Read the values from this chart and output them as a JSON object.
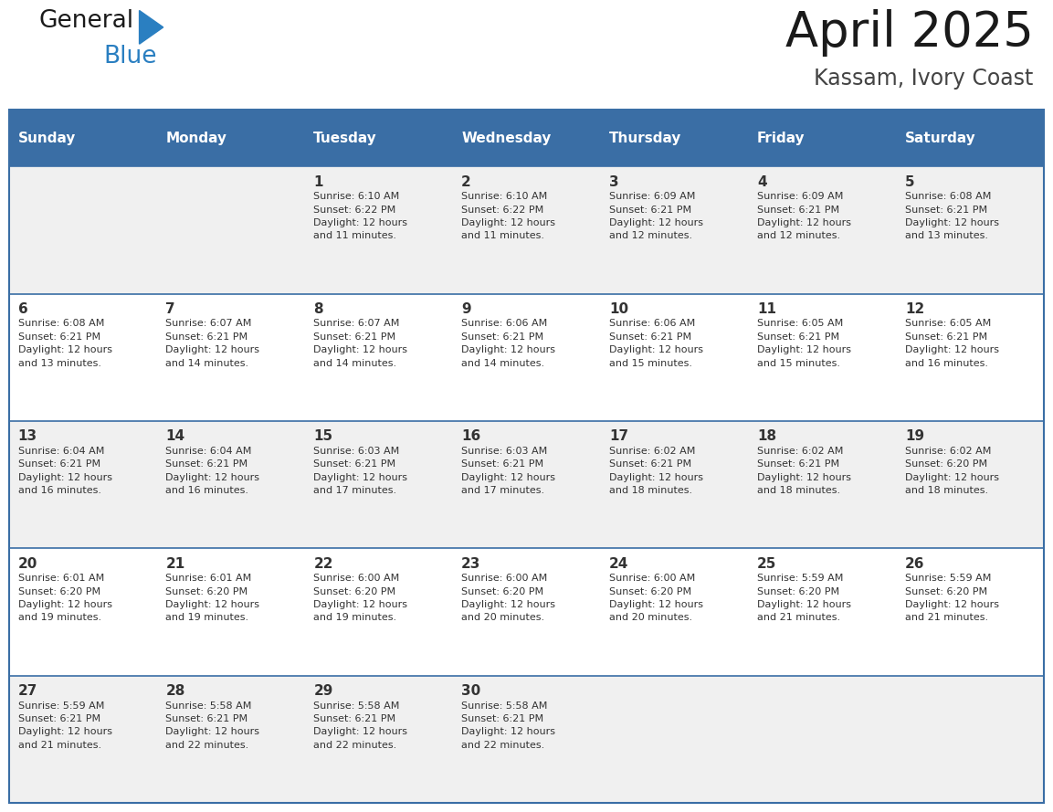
{
  "title": "April 2025",
  "subtitle": "Kassam, Ivory Coast",
  "header_bg": "#3a6ea5",
  "header_text_color": "#ffffff",
  "days_of_week": [
    "Sunday",
    "Monday",
    "Tuesday",
    "Wednesday",
    "Thursday",
    "Friday",
    "Saturday"
  ],
  "row_bg_even": "#f0f0f0",
  "row_bg_odd": "#ffffff",
  "cell_border_color": "#3a6ea5",
  "text_color": "#333333",
  "calendar": [
    [
      {
        "day": "",
        "info": ""
      },
      {
        "day": "",
        "info": ""
      },
      {
        "day": "1",
        "info": "Sunrise: 6:10 AM\nSunset: 6:22 PM\nDaylight: 12 hours\nand 11 minutes."
      },
      {
        "day": "2",
        "info": "Sunrise: 6:10 AM\nSunset: 6:22 PM\nDaylight: 12 hours\nand 11 minutes."
      },
      {
        "day": "3",
        "info": "Sunrise: 6:09 AM\nSunset: 6:21 PM\nDaylight: 12 hours\nand 12 minutes."
      },
      {
        "day": "4",
        "info": "Sunrise: 6:09 AM\nSunset: 6:21 PM\nDaylight: 12 hours\nand 12 minutes."
      },
      {
        "day": "5",
        "info": "Sunrise: 6:08 AM\nSunset: 6:21 PM\nDaylight: 12 hours\nand 13 minutes."
      }
    ],
    [
      {
        "day": "6",
        "info": "Sunrise: 6:08 AM\nSunset: 6:21 PM\nDaylight: 12 hours\nand 13 minutes."
      },
      {
        "day": "7",
        "info": "Sunrise: 6:07 AM\nSunset: 6:21 PM\nDaylight: 12 hours\nand 14 minutes."
      },
      {
        "day": "8",
        "info": "Sunrise: 6:07 AM\nSunset: 6:21 PM\nDaylight: 12 hours\nand 14 minutes."
      },
      {
        "day": "9",
        "info": "Sunrise: 6:06 AM\nSunset: 6:21 PM\nDaylight: 12 hours\nand 14 minutes."
      },
      {
        "day": "10",
        "info": "Sunrise: 6:06 AM\nSunset: 6:21 PM\nDaylight: 12 hours\nand 15 minutes."
      },
      {
        "day": "11",
        "info": "Sunrise: 6:05 AM\nSunset: 6:21 PM\nDaylight: 12 hours\nand 15 minutes."
      },
      {
        "day": "12",
        "info": "Sunrise: 6:05 AM\nSunset: 6:21 PM\nDaylight: 12 hours\nand 16 minutes."
      }
    ],
    [
      {
        "day": "13",
        "info": "Sunrise: 6:04 AM\nSunset: 6:21 PM\nDaylight: 12 hours\nand 16 minutes."
      },
      {
        "day": "14",
        "info": "Sunrise: 6:04 AM\nSunset: 6:21 PM\nDaylight: 12 hours\nand 16 minutes."
      },
      {
        "day": "15",
        "info": "Sunrise: 6:03 AM\nSunset: 6:21 PM\nDaylight: 12 hours\nand 17 minutes."
      },
      {
        "day": "16",
        "info": "Sunrise: 6:03 AM\nSunset: 6:21 PM\nDaylight: 12 hours\nand 17 minutes."
      },
      {
        "day": "17",
        "info": "Sunrise: 6:02 AM\nSunset: 6:21 PM\nDaylight: 12 hours\nand 18 minutes."
      },
      {
        "day": "18",
        "info": "Sunrise: 6:02 AM\nSunset: 6:21 PM\nDaylight: 12 hours\nand 18 minutes."
      },
      {
        "day": "19",
        "info": "Sunrise: 6:02 AM\nSunset: 6:20 PM\nDaylight: 12 hours\nand 18 minutes."
      }
    ],
    [
      {
        "day": "20",
        "info": "Sunrise: 6:01 AM\nSunset: 6:20 PM\nDaylight: 12 hours\nand 19 minutes."
      },
      {
        "day": "21",
        "info": "Sunrise: 6:01 AM\nSunset: 6:20 PM\nDaylight: 12 hours\nand 19 minutes."
      },
      {
        "day": "22",
        "info": "Sunrise: 6:00 AM\nSunset: 6:20 PM\nDaylight: 12 hours\nand 19 minutes."
      },
      {
        "day": "23",
        "info": "Sunrise: 6:00 AM\nSunset: 6:20 PM\nDaylight: 12 hours\nand 20 minutes."
      },
      {
        "day": "24",
        "info": "Sunrise: 6:00 AM\nSunset: 6:20 PM\nDaylight: 12 hours\nand 20 minutes."
      },
      {
        "day": "25",
        "info": "Sunrise: 5:59 AM\nSunset: 6:20 PM\nDaylight: 12 hours\nand 21 minutes."
      },
      {
        "day": "26",
        "info": "Sunrise: 5:59 AM\nSunset: 6:20 PM\nDaylight: 12 hours\nand 21 minutes."
      }
    ],
    [
      {
        "day": "27",
        "info": "Sunrise: 5:59 AM\nSunset: 6:21 PM\nDaylight: 12 hours\nand 21 minutes."
      },
      {
        "day": "28",
        "info": "Sunrise: 5:58 AM\nSunset: 6:21 PM\nDaylight: 12 hours\nand 22 minutes."
      },
      {
        "day": "29",
        "info": "Sunrise: 5:58 AM\nSunset: 6:21 PM\nDaylight: 12 hours\nand 22 minutes."
      },
      {
        "day": "30",
        "info": "Sunrise: 5:58 AM\nSunset: 6:21 PM\nDaylight: 12 hours\nand 22 minutes."
      },
      {
        "day": "",
        "info": ""
      },
      {
        "day": "",
        "info": ""
      },
      {
        "day": "",
        "info": ""
      }
    ]
  ],
  "logo_color1": "#1a1a1a",
  "logo_color2": "#2a7fc1",
  "logo_triangle_color": "#2a7fc1",
  "title_color": "#1a1a1a",
  "subtitle_color": "#444444",
  "title_fontsize": 38,
  "subtitle_fontsize": 17,
  "header_fontsize": 11,
  "day_num_fontsize": 11,
  "info_fontsize": 8
}
